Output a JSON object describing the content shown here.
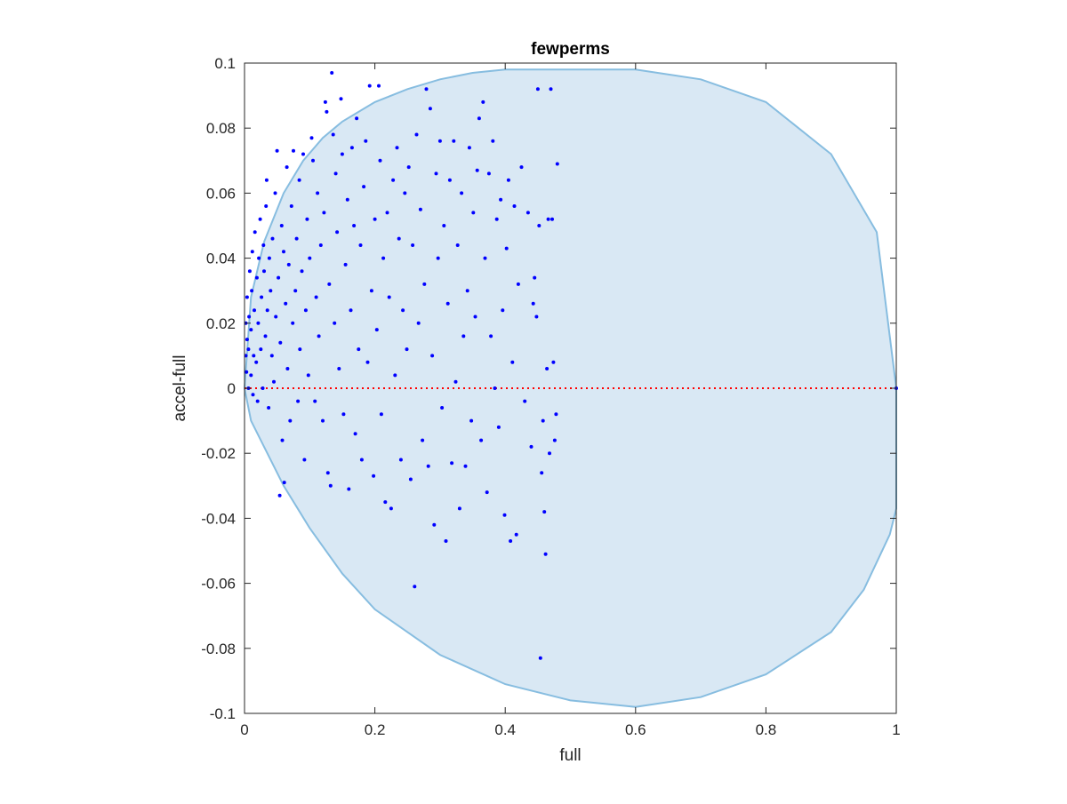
{
  "chart_data": {
    "type": "scatter",
    "title": "fewperms",
    "xlabel": "full",
    "ylabel": "accel-full",
    "xlim": [
      0,
      1
    ],
    "ylim": [
      -0.1,
      0.1
    ],
    "xticks": [
      0,
      0.2,
      0.4,
      0.6,
      0.8,
      1
    ],
    "xtick_labels": [
      "0",
      "0.2",
      "0.4",
      "0.6",
      "0.8",
      "1"
    ],
    "yticks": [
      -0.1,
      -0.08,
      -0.06,
      -0.04,
      -0.02,
      0,
      0.02,
      0.04,
      0.06,
      0.08,
      0.1
    ],
    "ytick_labels": [
      "-0.1",
      "-0.08",
      "-0.06",
      "-0.04",
      "-0.02",
      "0",
      "0.02",
      "0.04",
      "0.06",
      "0.08",
      "0.1"
    ],
    "grid": false,
    "reference_line": {
      "y": 0,
      "color": "#ff0000",
      "style": "dotted"
    },
    "region": {
      "fill": "#d9e8f4",
      "stroke": "#87bde0",
      "boundary": [
        [
          1.0,
          0.0
        ],
        [
          0.97,
          0.048
        ],
        [
          0.9,
          0.072
        ],
        [
          0.8,
          0.088
        ],
        [
          0.7,
          0.095
        ],
        [
          0.6,
          0.098
        ],
        [
          0.5,
          0.098
        ],
        [
          0.4,
          0.098
        ],
        [
          0.35,
          0.097
        ],
        [
          0.3,
          0.095
        ],
        [
          0.25,
          0.092
        ],
        [
          0.2,
          0.088
        ],
        [
          0.15,
          0.082
        ],
        [
          0.12,
          0.077
        ],
        [
          0.09,
          0.07
        ],
        [
          0.06,
          0.06
        ],
        [
          0.03,
          0.045
        ],
        [
          0.01,
          0.028
        ],
        [
          0.0,
          0.0
        ],
        [
          0.01,
          -0.01
        ],
        [
          0.03,
          -0.018
        ],
        [
          0.06,
          -0.03
        ],
        [
          0.1,
          -0.043
        ],
        [
          0.15,
          -0.057
        ],
        [
          0.2,
          -0.068
        ],
        [
          0.3,
          -0.082
        ],
        [
          0.4,
          -0.091
        ],
        [
          0.5,
          -0.096
        ],
        [
          0.6,
          -0.098
        ],
        [
          0.7,
          -0.095
        ],
        [
          0.8,
          -0.088
        ],
        [
          0.9,
          -0.075
        ],
        [
          0.95,
          -0.062
        ],
        [
          0.99,
          -0.045
        ],
        [
          1.0,
          -0.037
        ],
        [
          1.0,
          0.0
        ]
      ]
    },
    "series": [
      {
        "color": "#0000ff",
        "points": [
          [
            0.002,
            0.01
          ],
          [
            0.002,
            0.02
          ],
          [
            0.003,
            0.005
          ],
          [
            0.004,
            0.015
          ],
          [
            0.004,
            0.028
          ],
          [
            0.006,
            0.0
          ],
          [
            0.006,
            0.012
          ],
          [
            0.007,
            0.022
          ],
          [
            0.008,
            0.036
          ],
          [
            0.01,
            0.004
          ],
          [
            0.01,
            0.018
          ],
          [
            0.011,
            0.03
          ],
          [
            0.012,
            0.042
          ],
          [
            0.013,
            -0.002
          ],
          [
            0.014,
            0.01
          ],
          [
            0.015,
            0.024
          ],
          [
            0.016,
            0.048
          ],
          [
            0.018,
            0.008
          ],
          [
            0.019,
            0.034
          ],
          [
            0.02,
            -0.004
          ],
          [
            0.021,
            0.02
          ],
          [
            0.022,
            0.04
          ],
          [
            0.024,
            0.052
          ],
          [
            0.025,
            0.012
          ],
          [
            0.026,
            0.028
          ],
          [
            0.028,
            0.0
          ],
          [
            0.029,
            0.044
          ],
          [
            0.03,
            0.036
          ],
          [
            0.032,
            0.016
          ],
          [
            0.033,
            0.056
          ],
          [
            0.034,
            0.064
          ],
          [
            0.035,
            0.024
          ],
          [
            0.037,
            -0.006
          ],
          [
            0.038,
            0.04
          ],
          [
            0.04,
            0.03
          ],
          [
            0.042,
            0.01
          ],
          [
            0.043,
            0.046
          ],
          [
            0.045,
            0.002
          ],
          [
            0.047,
            0.06
          ],
          [
            0.048,
            0.022
          ],
          [
            0.05,
            0.073
          ],
          [
            0.052,
            0.034
          ],
          [
            0.054,
            -0.033
          ],
          [
            0.055,
            0.014
          ],
          [
            0.057,
            0.05
          ],
          [
            0.058,
            -0.016
          ],
          [
            0.06,
            0.042
          ],
          [
            0.061,
            -0.029
          ],
          [
            0.063,
            0.026
          ],
          [
            0.065,
            0.068
          ],
          [
            0.066,
            0.006
          ],
          [
            0.068,
            0.038
          ],
          [
            0.07,
            -0.01
          ],
          [
            0.072,
            0.056
          ],
          [
            0.074,
            0.02
          ],
          [
            0.075,
            0.073
          ],
          [
            0.078,
            0.03
          ],
          [
            0.08,
            0.046
          ],
          [
            0.082,
            -0.004
          ],
          [
            0.084,
            0.064
          ],
          [
            0.085,
            0.012
          ],
          [
            0.088,
            0.036
          ],
          [
            0.09,
            0.072
          ],
          [
            0.092,
            -0.022
          ],
          [
            0.094,
            0.024
          ],
          [
            0.096,
            0.052
          ],
          [
            0.098,
            0.004
          ],
          [
            0.1,
            0.04
          ],
          [
            0.103,
            0.077
          ],
          [
            0.105,
            0.07
          ],
          [
            0.108,
            -0.004
          ],
          [
            0.11,
            0.028
          ],
          [
            0.112,
            0.06
          ],
          [
            0.114,
            0.016
          ],
          [
            0.117,
            0.044
          ],
          [
            0.12,
            -0.01
          ],
          [
            0.122,
            0.054
          ],
          [
            0.124,
            0.088
          ],
          [
            0.126,
            0.085
          ],
          [
            0.128,
            -0.026
          ],
          [
            0.13,
            0.032
          ],
          [
            0.132,
            -0.03
          ],
          [
            0.134,
            0.097
          ],
          [
            0.136,
            0.078
          ],
          [
            0.138,
            0.02
          ],
          [
            0.14,
            0.066
          ],
          [
            0.142,
            0.048
          ],
          [
            0.145,
            0.006
          ],
          [
            0.148,
            0.089
          ],
          [
            0.15,
            0.072
          ],
          [
            0.152,
            -0.008
          ],
          [
            0.155,
            0.038
          ],
          [
            0.158,
            0.058
          ],
          [
            0.16,
            -0.031
          ],
          [
            0.163,
            0.024
          ],
          [
            0.165,
            0.074
          ],
          [
            0.168,
            0.05
          ],
          [
            0.17,
            -0.014
          ],
          [
            0.172,
            0.083
          ],
          [
            0.175,
            0.012
          ],
          [
            0.178,
            0.044
          ],
          [
            0.18,
            -0.022
          ],
          [
            0.183,
            0.062
          ],
          [
            0.186,
            0.076
          ],
          [
            0.189,
            0.008
          ],
          [
            0.192,
            0.093
          ],
          [
            0.195,
            0.03
          ],
          [
            0.198,
            -0.027
          ],
          [
            0.2,
            0.052
          ],
          [
            0.203,
            0.018
          ],
          [
            0.206,
            0.093
          ],
          [
            0.208,
            0.07
          ],
          [
            0.21,
            -0.008
          ],
          [
            0.213,
            0.04
          ],
          [
            0.216,
            -0.035
          ],
          [
            0.219,
            0.054
          ],
          [
            0.222,
            0.028
          ],
          [
            0.225,
            -0.037
          ],
          [
            0.228,
            0.064
          ],
          [
            0.231,
            0.004
          ],
          [
            0.234,
            0.074
          ],
          [
            0.237,
            0.046
          ],
          [
            0.24,
            -0.022
          ],
          [
            0.243,
            0.024
          ],
          [
            0.246,
            0.06
          ],
          [
            0.249,
            0.012
          ],
          [
            0.252,
            0.068
          ],
          [
            0.255,
            -0.028
          ],
          [
            0.258,
            0.044
          ],
          [
            0.261,
            -0.061
          ],
          [
            0.264,
            0.078
          ],
          [
            0.267,
            0.02
          ],
          [
            0.27,
            0.055
          ],
          [
            0.273,
            -0.016
          ],
          [
            0.276,
            0.032
          ],
          [
            0.279,
            0.092
          ],
          [
            0.282,
            -0.024
          ],
          [
            0.285,
            0.086
          ],
          [
            0.288,
            0.01
          ],
          [
            0.291,
            -0.042
          ],
          [
            0.294,
            0.066
          ],
          [
            0.297,
            0.04
          ],
          [
            0.3,
            0.076
          ],
          [
            0.303,
            -0.006
          ],
          [
            0.306,
            0.05
          ],
          [
            0.309,
            -0.047
          ],
          [
            0.312,
            0.026
          ],
          [
            0.315,
            0.064
          ],
          [
            0.318,
            -0.023
          ],
          [
            0.321,
            0.076
          ],
          [
            0.324,
            0.002
          ],
          [
            0.327,
            0.044
          ],
          [
            0.33,
            -0.037
          ],
          [
            0.333,
            0.06
          ],
          [
            0.336,
            0.016
          ],
          [
            0.339,
            -0.024
          ],
          [
            0.342,
            0.03
          ],
          [
            0.345,
            0.074
          ],
          [
            0.348,
            -0.01
          ],
          [
            0.351,
            0.054
          ],
          [
            0.354,
            0.022
          ],
          [
            0.357,
            0.067
          ],
          [
            0.36,
            0.083
          ],
          [
            0.363,
            -0.016
          ],
          [
            0.366,
            0.088
          ],
          [
            0.369,
            0.04
          ],
          [
            0.372,
            -0.032
          ],
          [
            0.375,
            0.066
          ],
          [
            0.378,
            0.016
          ],
          [
            0.381,
            0.076
          ],
          [
            0.384,
            0.0
          ],
          [
            0.387,
            0.052
          ],
          [
            0.39,
            -0.012
          ],
          [
            0.393,
            0.058
          ],
          [
            0.396,
            0.024
          ],
          [
            0.399,
            -0.039
          ],
          [
            0.402,
            0.043
          ],
          [
            0.405,
            0.064
          ],
          [
            0.408,
            -0.047
          ],
          [
            0.411,
            0.008
          ],
          [
            0.414,
            0.056
          ],
          [
            0.417,
            -0.045
          ],
          [
            0.42,
            0.032
          ],
          [
            0.425,
            0.068
          ],
          [
            0.43,
            -0.004
          ],
          [
            0.435,
            0.054
          ],
          [
            0.44,
            -0.018
          ],
          [
            0.443,
            0.026
          ],
          [
            0.445,
            0.034
          ],
          [
            0.448,
            0.022
          ],
          [
            0.45,
            0.092
          ],
          [
            0.452,
            0.05
          ],
          [
            0.454,
            -0.083
          ],
          [
            0.456,
            -0.026
          ],
          [
            0.458,
            -0.01
          ],
          [
            0.46,
            -0.038
          ],
          [
            0.462,
            -0.051
          ],
          [
            0.464,
            0.006
          ],
          [
            0.466,
            0.052
          ],
          [
            0.468,
            -0.02
          ],
          [
            0.47,
            0.092
          ],
          [
            0.472,
            0.052
          ],
          [
            0.474,
            0.008
          ],
          [
            0.476,
            -0.016
          ],
          [
            0.478,
            -0.008
          ],
          [
            0.48,
            0.069
          ],
          [
            1.0,
            0.0
          ]
        ]
      }
    ]
  }
}
